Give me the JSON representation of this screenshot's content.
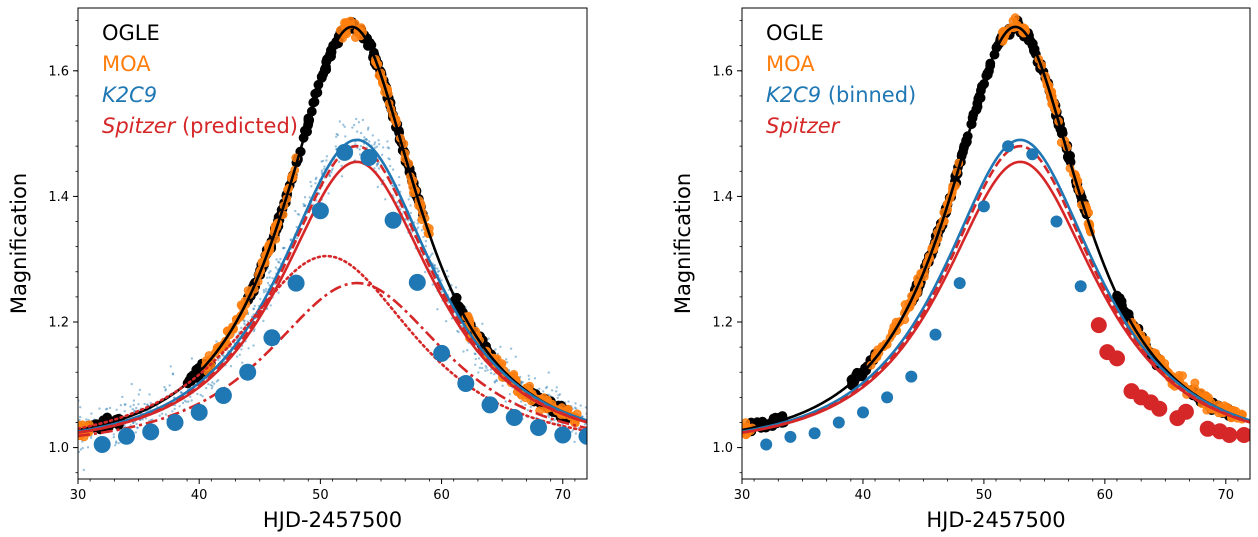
{
  "chart_data": [
    {
      "type": "line",
      "xlabel": "HJD-2457500",
      "ylabel": "Magnification",
      "xlim": [
        30,
        72
      ],
      "ylim": [
        0.95,
        1.7
      ],
      "xticks": [
        30,
        40,
        50,
        60,
        70
      ],
      "yticks": [
        1.0,
        1.2,
        1.4,
        1.6
      ],
      "xtick_labels": [
        "30",
        "40",
        "50",
        "60",
        "70"
      ],
      "ytick_labels": [
        "1.0",
        "1.2",
        "1.4",
        "1.6"
      ],
      "legend_position": "top-left",
      "legend": [
        {
          "label": "OGLE",
          "color": "#000000",
          "italic_part": ""
        },
        {
          "label": "MOA",
          "color": "#ff7f0e",
          "italic_part": ""
        },
        {
          "label": "K2C9",
          "color": "#1f77b4",
          "italic_part": "K2C9"
        },
        {
          "label": "Spitzer (predicted)",
          "color": "#d62728",
          "italic_part": "Spitzer"
        }
      ],
      "models": [
        {
          "name": "OGLE",
          "color": "#000000",
          "style": "solid",
          "t0": 52.6,
          "peak": 1.67,
          "u0": 0.65,
          "tE": 9.5
        },
        {
          "name": "K2C9",
          "color": "#1f77b4",
          "style": "solid",
          "t0": 53.0,
          "peak": 1.49,
          "u0": 0.78,
          "tE": 9.5
        },
        {
          "name": "Spitzer",
          "color": "#d62728",
          "style": "solid",
          "t0": 53.0,
          "peak": 1.455,
          "u0": 0.81,
          "tE": 9.3
        },
        {
          "name": "Spitzer",
          "color": "#d62728",
          "style": "dashed",
          "t0": 53.0,
          "peak": 1.48,
          "u0": 0.79,
          "tE": 9.3
        },
        {
          "name": "Spitzer",
          "color": "#d62728",
          "style": "dotted",
          "t0": 50.5,
          "peak": 1.305,
          "u0": 0.96,
          "tE": 9.5
        },
        {
          "name": "Spitzer",
          "color": "#d62728",
          "style": "dashdot",
          "t0": 53.0,
          "peak": 1.262,
          "u0": 1.04,
          "tE": 9.0
        }
      ],
      "binned_points": [
        {
          "series": "K2C9",
          "color": "#1f77b4",
          "x": [
            32,
            34,
            36,
            38,
            40,
            42,
            44,
            46,
            48,
            50,
            52,
            54,
            56,
            58,
            60,
            62,
            64,
            66,
            68,
            70,
            72
          ],
          "y": [
            1.005,
            1.018,
            1.025,
            1.04,
            1.056,
            1.083,
            1.12,
            1.175,
            1.262,
            1.377,
            1.47,
            1.462,
            1.362,
            1.263,
            1.15,
            1.102,
            1.068,
            1.048,
            1.032,
            1.02,
            1.018
          ]
        }
      ]
    },
    {
      "type": "line",
      "xlabel": "HJD-2457500",
      "ylabel": "Magnification",
      "xlim": [
        30,
        72
      ],
      "ylim": [
        0.95,
        1.7
      ],
      "xticks": [
        30,
        40,
        50,
        60,
        70
      ],
      "yticks": [
        1.0,
        1.2,
        1.4,
        1.6
      ],
      "xtick_labels": [
        "30",
        "40",
        "50",
        "60",
        "70"
      ],
      "ytick_labels": [
        "1.0",
        "1.2",
        "1.4",
        "1.6"
      ],
      "legend_position": "top-left",
      "legend": [
        {
          "label": "OGLE",
          "color": "#000000",
          "italic_part": ""
        },
        {
          "label": "MOA",
          "color": "#ff7f0e",
          "italic_part": ""
        },
        {
          "label": "K2C9 (binned)",
          "color": "#1f77b4",
          "italic_part": "K2C9"
        },
        {
          "label": "Spitzer",
          "color": "#d62728",
          "italic_part": "Spitzer"
        }
      ],
      "models": [
        {
          "name": "OGLE",
          "color": "#000000",
          "style": "solid",
          "t0": 52.6,
          "peak": 1.67,
          "u0": 0.65,
          "tE": 9.5
        },
        {
          "name": "K2C9",
          "color": "#1f77b4",
          "style": "solid",
          "t0": 53.0,
          "peak": 1.49,
          "u0": 0.78,
          "tE": 9.5
        },
        {
          "name": "Spitzer",
          "color": "#d62728",
          "style": "solid",
          "t0": 53.0,
          "peak": 1.455,
          "u0": 0.81,
          "tE": 9.3
        },
        {
          "name": "Spitzer",
          "color": "#d62728",
          "style": "dashed",
          "t0": 53.0,
          "peak": 1.48,
          "u0": 0.79,
          "tE": 9.3
        }
      ],
      "binned_points": [
        {
          "series": "K2C9",
          "color": "#1f77b4",
          "x": [
            32,
            34,
            36,
            38,
            40,
            42,
            44,
            46,
            48,
            50,
            52,
            54,
            56,
            58
          ],
          "y": [
            1.005,
            1.017,
            1.023,
            1.04,
            1.056,
            1.08,
            1.113,
            1.18,
            1.262,
            1.384,
            1.48,
            1.467,
            1.36,
            1.257
          ]
        },
        {
          "series": "Spitzer",
          "color": "#d62728",
          "x": [
            59.5,
            60.2,
            61.0,
            62.2,
            63.0,
            63.8,
            64.5,
            66.0,
            66.7,
            68.5,
            69.5,
            70.3,
            71.5
          ],
          "y": [
            1.195,
            1.152,
            1.142,
            1.09,
            1.08,
            1.072,
            1.062,
            1.047,
            1.057,
            1.03,
            1.026,
            1.02,
            1.02
          ]
        }
      ]
    }
  ]
}
